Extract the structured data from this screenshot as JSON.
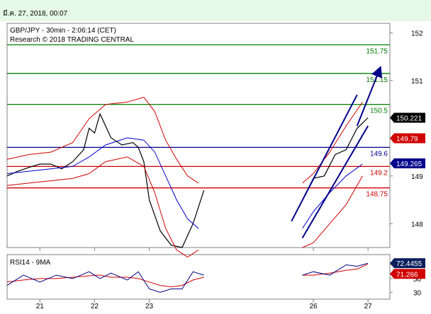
{
  "header": {
    "datestamp": "มี.ค. 27, 2018, 00:07",
    "instrument": "GBP/JPY - 30min - 2:06:14 (CET)",
    "research": "Research © 2018 TRADING CENTRAL"
  },
  "colors": {
    "background": "#ffffff",
    "topbar": "#e6f8e6",
    "resistance": "#008000",
    "pivot": "#00008b",
    "support": "#d00000",
    "bollinger": "#d00000",
    "moving_average": "#0000cc",
    "candles": "#000000",
    "arrow": "#00008b",
    "rsi_line": "#000080",
    "rsi_signal": "#d00000",
    "current_price_tag": "#000000",
    "rsi_tag": "#0b1f5e",
    "pivot_tag": "#00008b",
    "support_tag": "#d00000"
  },
  "chart_data": {
    "type": "line",
    "subtype": "candlestick",
    "y_axis": {
      "range": [
        147.5,
        152.2
      ],
      "ticks": [
        152,
        151,
        149,
        148
      ],
      "tick_labels": [
        "152",
        "151",
        "149",
        "148"
      ]
    },
    "x_axis": {
      "range": [
        20.4,
        27.4
      ],
      "ticks": [
        21,
        22,
        23,
        26,
        27
      ],
      "tick_labels": [
        "21",
        "22",
        "23",
        "26",
        "27"
      ]
    },
    "levels": [
      {
        "value": 151.75,
        "label": "151.75",
        "kind": "resistance"
      },
      {
        "value": 151.15,
        "label": "151.15",
        "kind": "resistance"
      },
      {
        "value": 150.5,
        "label": "150.5",
        "kind": "resistance"
      },
      {
        "value": 149.6,
        "label": "149.6",
        "kind": "pivot"
      },
      {
        "value": 149.2,
        "label": "149.2",
        "kind": "support"
      },
      {
        "value": 148.75,
        "label": "148.75",
        "kind": "support"
      }
    ],
    "price_tags": [
      {
        "value": 150.221,
        "label": "150.221",
        "kind": "current_price"
      },
      {
        "value": 149.79,
        "label": "149.79",
        "kind": "support"
      },
      {
        "value": 149.265,
        "label": "149.265",
        "kind": "pivot"
      }
    ],
    "series": [
      {
        "x": [
          20.4,
          20.6,
          20.8,
          21.0,
          21.2,
          21.4,
          21.6,
          21.8,
          21.9,
          22.0,
          22.1,
          22.3,
          22.5,
          22.7,
          22.8,
          22.9,
          23.0,
          23.2,
          23.4,
          23.6,
          23.8,
          24.0,
          25.8,
          26.0,
          26.2,
          26.4,
          26.6,
          26.8,
          27.0
        ],
        "y": [
          149.0,
          149.1,
          149.18,
          149.25,
          149.25,
          149.15,
          149.3,
          149.55,
          150.0,
          149.9,
          150.3,
          149.8,
          149.65,
          149.7,
          149.6,
          149.3,
          148.5,
          147.85,
          147.55,
          147.5,
          148.0,
          148.7,
          148.5,
          148.95,
          149.0,
          149.45,
          149.55,
          150.0,
          150.22
        ]
      },
      {
        "x": [
          20.4,
          20.8,
          21.2,
          21.6,
          21.9,
          22.2,
          22.6,
          22.9,
          23.1,
          23.3,
          23.5,
          23.7,
          23.9,
          25.8,
          26.0,
          26.3,
          26.6,
          26.9
        ],
        "y": [
          149.05,
          149.1,
          149.15,
          149.2,
          149.4,
          149.65,
          149.8,
          149.75,
          149.5,
          149.0,
          148.5,
          148.1,
          147.9,
          147.9,
          148.25,
          148.65,
          149.0,
          149.25
        ]
      },
      {
        "x": [
          20.4,
          20.8,
          21.2,
          21.6,
          21.9,
          22.2,
          22.6,
          22.9,
          23.1,
          23.3,
          23.5,
          23.7,
          23.9,
          25.8,
          26.0,
          26.3,
          26.6,
          26.9
        ],
        "y": [
          149.35,
          149.45,
          149.5,
          149.7,
          150.2,
          150.5,
          150.55,
          150.65,
          150.35,
          149.75,
          149.35,
          149.0,
          148.85,
          148.85,
          149.05,
          149.5,
          150.05,
          150.55
        ]
      },
      {
        "x": [
          20.4,
          20.8,
          21.2,
          21.6,
          21.9,
          22.2,
          22.6,
          22.9,
          23.1,
          23.3,
          23.5,
          23.7,
          23.9,
          25.8,
          26.0,
          26.3,
          26.6,
          26.9
        ],
        "y": [
          148.8,
          148.85,
          148.9,
          148.95,
          149.05,
          149.3,
          149.4,
          149.2,
          148.65,
          147.9,
          147.45,
          147.3,
          147.45,
          147.5,
          147.6,
          148.0,
          148.4,
          149.0
        ]
      }
    ],
    "trend_channel": {
      "upper": [
        [
          25.6,
          148.05
        ],
        [
          26.8,
          150.7
        ]
      ],
      "lower": [
        [
          25.8,
          147.7
        ],
        [
          27.0,
          150.05
        ]
      ],
      "arrow": [
        [
          26.8,
          150.05
        ],
        [
          27.2,
          151.2
        ]
      ]
    },
    "rsi": {
      "label": "RSI14 - 9MA",
      "ticks": [
        70,
        50,
        30
      ],
      "tick_labels": [
        "70",
        "50",
        "30"
      ],
      "range": [
        20,
        85
      ],
      "x": [
        20.4,
        20.7,
        21.0,
        21.3,
        21.6,
        21.9,
        22.0,
        22.1,
        22.3,
        22.6,
        22.8,
        23.0,
        23.2,
        23.4,
        23.6,
        23.8,
        24.0,
        25.8,
        26.0,
        26.3,
        26.6,
        26.8,
        27.0
      ],
      "values": [
        40,
        55,
        45,
        55,
        50,
        60,
        55,
        50,
        58,
        48,
        60,
        35,
        30,
        35,
        35,
        60,
        55,
        55,
        60,
        55,
        70,
        68,
        72.4455
      ],
      "signal_values": [
        45,
        48,
        50,
        50,
        52,
        54,
        55,
        55,
        52,
        52,
        50,
        45,
        40,
        38,
        40,
        48,
        52,
        55,
        55,
        58,
        62,
        64,
        71.266
      ],
      "price_tags": [
        {
          "value": 72.4455,
          "label": "72.4455"
        },
        {
          "value": 71.266,
          "label": "71.266"
        }
      ]
    }
  }
}
